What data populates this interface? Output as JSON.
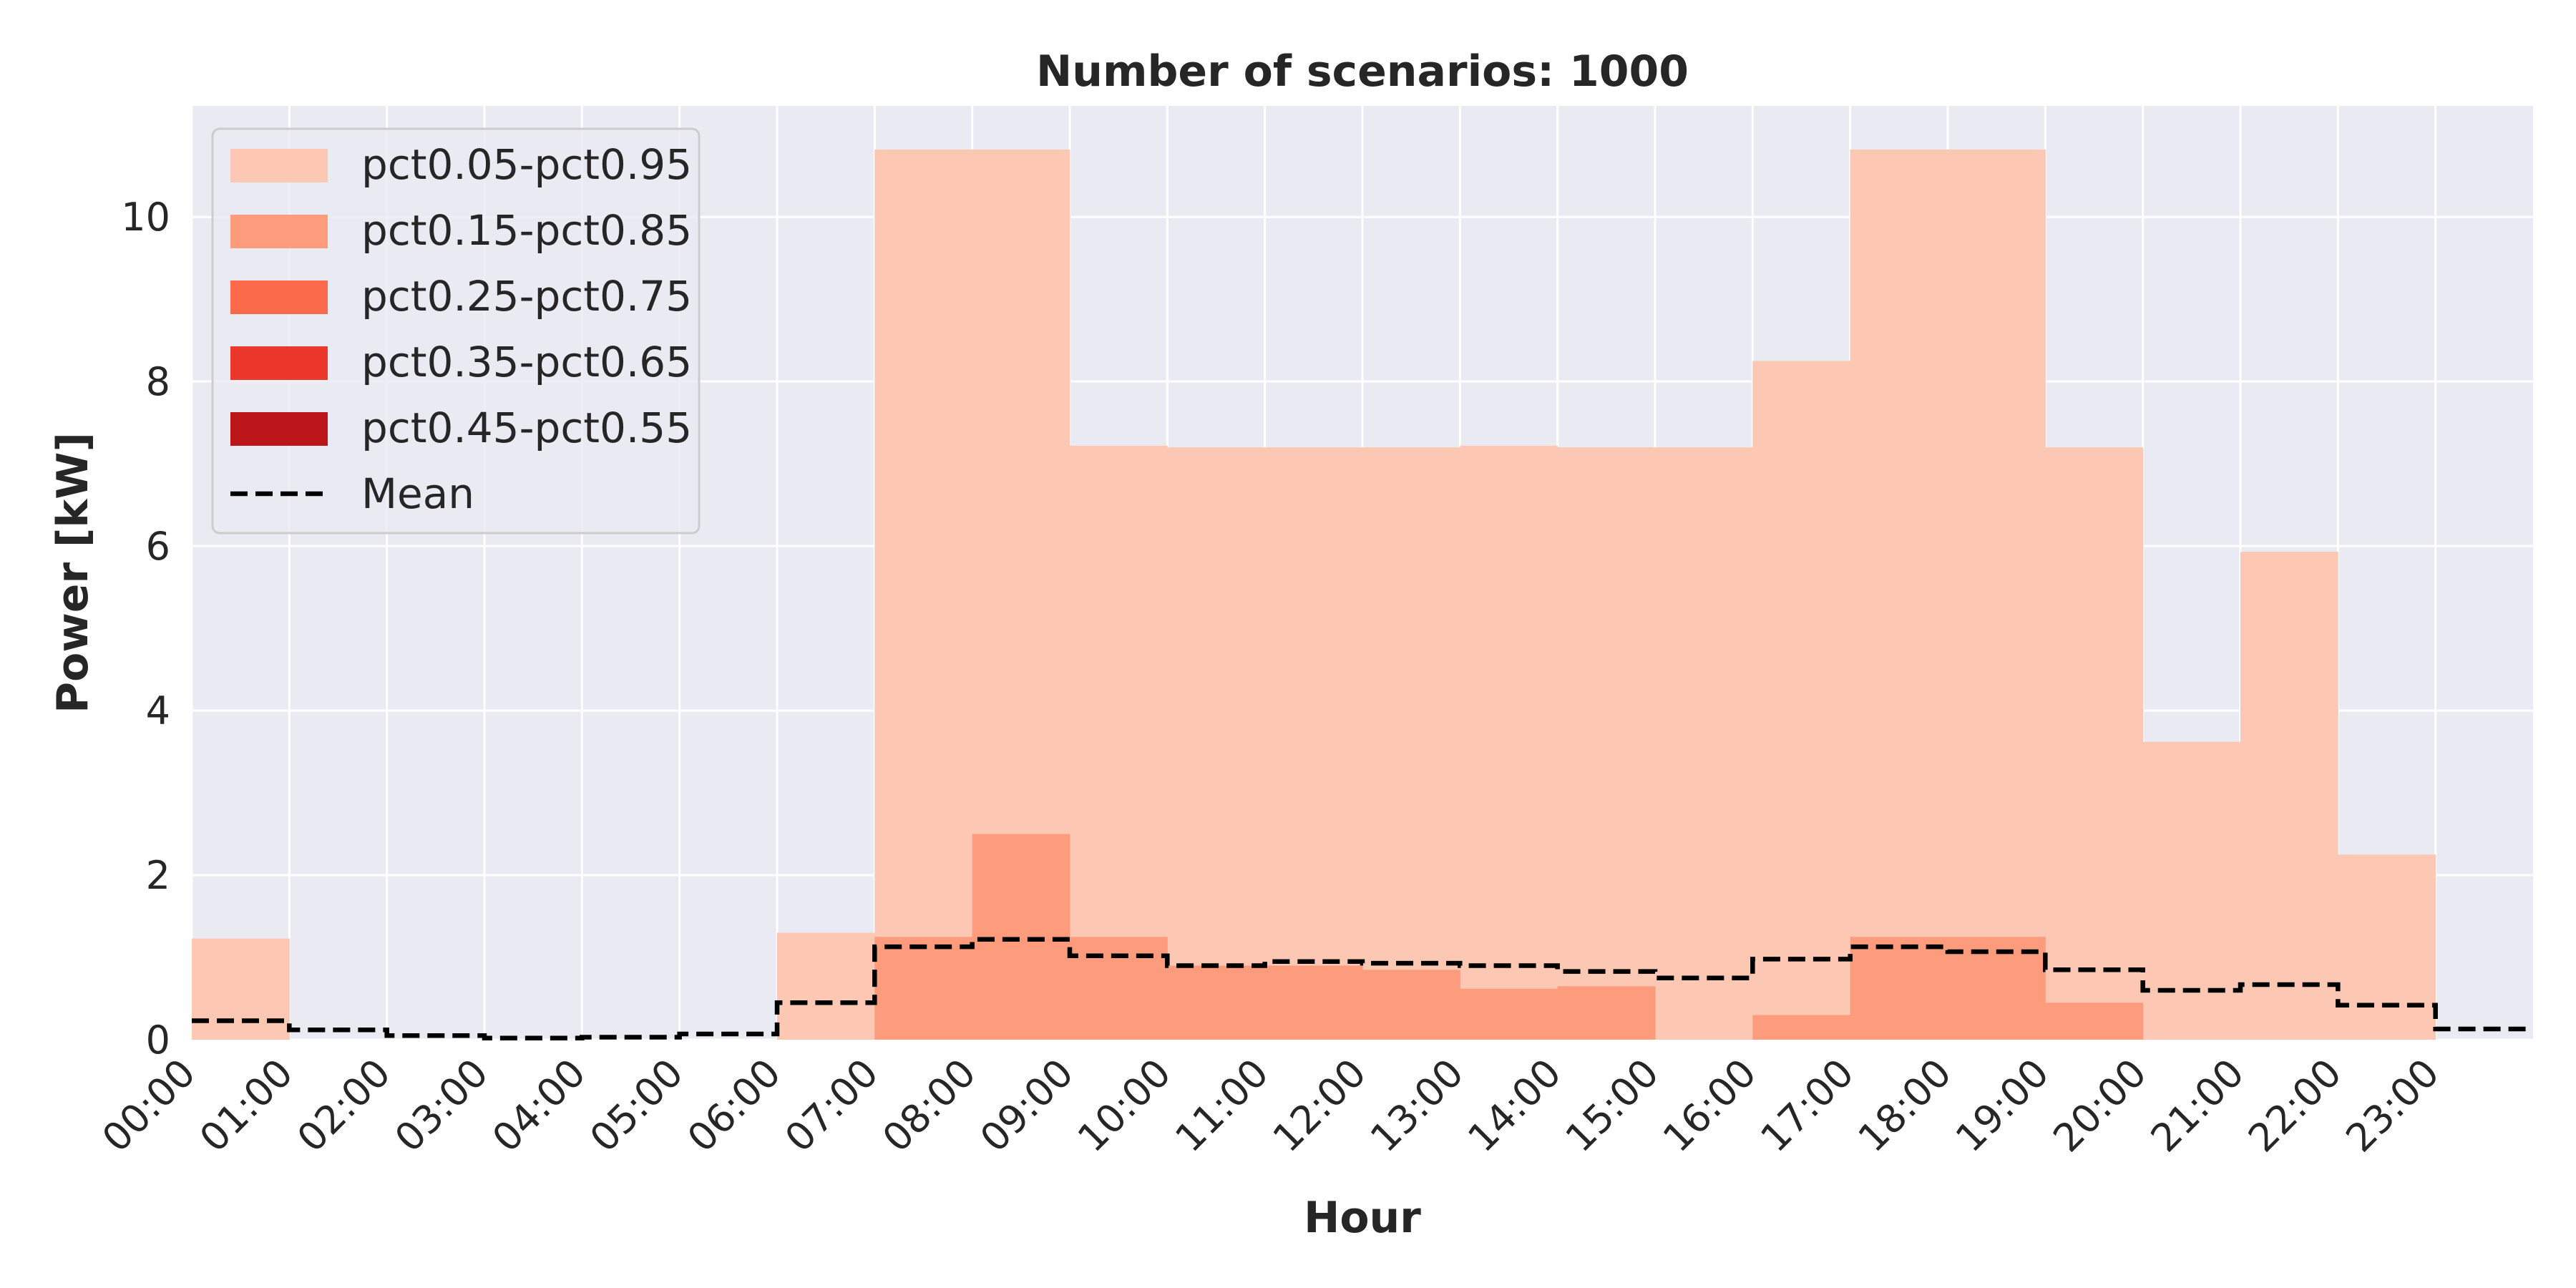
{
  "chart_data": {
    "type": "area",
    "title": "Number of scenarios: 1000",
    "xlabel": "Hour",
    "ylabel": "Power [kW]",
    "xlim": [
      0,
      24
    ],
    "ylim": [
      0,
      11.35
    ],
    "yticks": [
      0,
      2,
      4,
      6,
      8,
      10
    ],
    "categories": [
      "00:00",
      "01:00",
      "02:00",
      "03:00",
      "04:00",
      "05:00",
      "06:00",
      "07:00",
      "08:00",
      "09:00",
      "10:00",
      "11:00",
      "12:00",
      "13:00",
      "14:00",
      "15:00",
      "16:00",
      "17:00",
      "18:00",
      "19:00",
      "20:00",
      "21:00",
      "22:00",
      "23:00"
    ],
    "grid": true,
    "legend_position": "top-left",
    "bands": [
      {
        "name": "pct0.05-pct0.95",
        "color": "#fcc8b4",
        "lower": [
          0,
          0,
          0,
          0,
          0,
          0,
          0,
          0,
          0,
          0,
          0,
          0,
          0,
          0,
          0,
          0,
          0,
          0,
          0,
          0,
          0,
          0,
          0,
          0
        ],
        "upper": [
          1.23,
          0,
          0,
          0,
          0,
          0,
          1.3,
          10.82,
          10.82,
          7.22,
          7.2,
          7.2,
          7.2,
          7.22,
          7.2,
          7.2,
          8.25,
          10.82,
          10.82,
          7.2,
          3.62,
          5.93,
          2.25,
          0
        ]
      },
      {
        "name": "pct0.15-pct0.85",
        "color": "#fc9c7c",
        "lower": [
          0,
          0,
          0,
          0,
          0,
          0,
          0,
          0,
          0,
          0,
          0,
          0,
          0,
          0,
          0,
          0,
          0,
          0,
          0,
          0,
          0,
          0,
          0,
          0
        ],
        "upper": [
          0,
          0,
          0,
          0,
          0,
          0,
          0,
          1.25,
          2.5,
          1.25,
          0.9,
          0.9,
          0.85,
          0.62,
          0.65,
          0,
          0.3,
          1.25,
          1.25,
          0.45,
          0,
          0,
          0,
          0
        ]
      },
      {
        "name": "pct0.25-pct0.75",
        "color": "#fb6b4b",
        "lower": [
          0,
          0,
          0,
          0,
          0,
          0,
          0,
          0,
          0,
          0,
          0,
          0,
          0,
          0,
          0,
          0,
          0,
          0,
          0,
          0,
          0,
          0,
          0,
          0
        ],
        "upper": [
          0,
          0,
          0,
          0,
          0,
          0,
          0,
          0,
          0,
          0,
          0,
          0,
          0,
          0,
          0,
          0,
          0,
          0,
          0,
          0,
          0,
          0,
          0,
          0
        ]
      },
      {
        "name": "pct0.35-pct0.65",
        "color": "#ec372c",
        "lower": [
          0,
          0,
          0,
          0,
          0,
          0,
          0,
          0,
          0,
          0,
          0,
          0,
          0,
          0,
          0,
          0,
          0,
          0,
          0,
          0,
          0,
          0,
          0,
          0
        ],
        "upper": [
          0,
          0,
          0,
          0,
          0,
          0,
          0,
          0,
          0,
          0,
          0,
          0,
          0,
          0,
          0,
          0,
          0,
          0,
          0,
          0,
          0,
          0,
          0,
          0
        ]
      },
      {
        "name": "pct0.45-pct0.55",
        "color": "#bb151a",
        "lower": [
          0,
          0,
          0,
          0,
          0,
          0,
          0,
          0,
          0,
          0,
          0,
          0,
          0,
          0,
          0,
          0,
          0,
          0,
          0,
          0,
          0,
          0,
          0,
          0
        ],
        "upper": [
          0,
          0,
          0,
          0,
          0,
          0,
          0,
          0,
          0,
          0,
          0,
          0,
          0,
          0,
          0,
          0,
          0,
          0,
          0,
          0,
          0,
          0,
          0,
          0
        ]
      }
    ],
    "mean": {
      "name": "Mean",
      "color": "#000000",
      "values": [
        0.23,
        0.12,
        0.05,
        0.02,
        0.03,
        0.07,
        0.45,
        1.13,
        1.22,
        1.02,
        0.9,
        0.95,
        0.93,
        0.9,
        0.83,
        0.75,
        0.98,
        1.13,
        1.07,
        0.85,
        0.6,
        0.67,
        0.42,
        0.13
      ]
    },
    "colors": {
      "background": "#eaeaf2",
      "grid": "#ffffff",
      "legend_bg": "#eaeaf2",
      "legend_border": "#cccccc"
    }
  }
}
